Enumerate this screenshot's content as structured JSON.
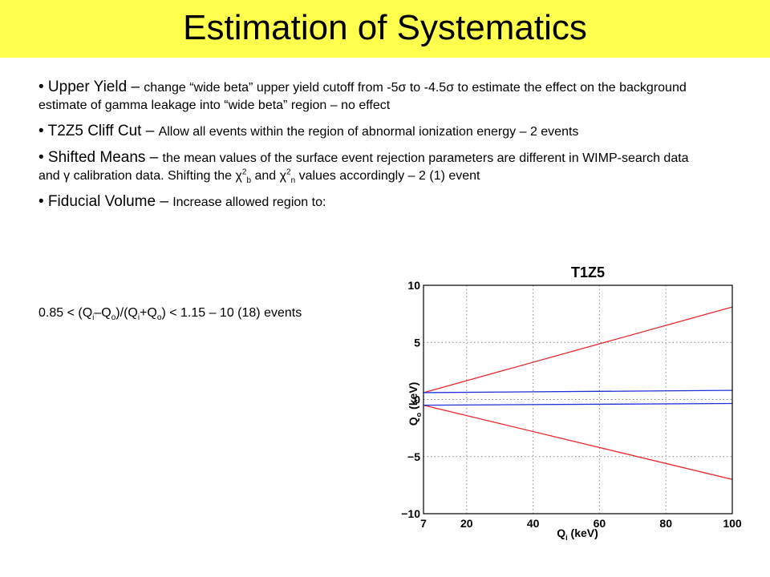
{
  "slide": {
    "title": "Estimation of Systematics",
    "bullets": [
      {
        "head": "• Upper Yield – ",
        "parts": [
          "change “wide beta” upper yield cutoff from -5",
          "σ",
          " to -4.5",
          "σ",
          " to estimate the effect on the background estimate of gamma leakage into “wide beta” region – no effect"
        ]
      },
      {
        "head": "• T2Z5 Cliff Cut – ",
        "parts": [
          "Allow all events within the region of abnormal ionization energy – 2 events"
        ]
      },
      {
        "head": "• Shifted Means – ",
        "parts": [
          "the mean values of the surface event rejection parameters are different in WIMP-search data and ",
          "γ",
          " calibration data.  Shifting the ",
          "χ",
          "2",
          "b",
          " and ",
          "χ",
          "2",
          "n",
          " values accordingly – 2 (1) event"
        ]
      },
      {
        "head": "• Fiducial Volume – ",
        "parts": [
          "Increase allowed region to:"
        ]
      }
    ],
    "formula": [
      "0.85 < (Q",
      "i",
      "–Q",
      "o",
      ")/(Q",
      "i",
      "+Q",
      "o",
      ")  < 1.15 – 10 (18) events"
    ]
  },
  "chart_data": {
    "type": "line",
    "title": "T1Z5",
    "xlabel": "Q",
    "xlabel_sub": "i",
    "xlabel_unit": " (keV)",
    "ylabel": "Q",
    "ylabel_sub": "o",
    "ylabel_unit": " (keV)",
    "xlim": [
      7,
      100
    ],
    "ylim": [
      -10,
      10
    ],
    "xticks": [
      7,
      20,
      40,
      60,
      80,
      100
    ],
    "yticks": [
      -10,
      -5,
      0,
      5,
      10
    ],
    "grid": true,
    "colors": {
      "red": "#e8262b",
      "blue": "#1f2fd6"
    },
    "series": [
      {
        "color": "red",
        "x": [
          7,
          100
        ],
        "y": [
          0.6,
          8.1
        ]
      },
      {
        "color": "red",
        "x": [
          7,
          100
        ],
        "y": [
          -0.5,
          -7.0
        ]
      },
      {
        "color": "blue",
        "x": [
          7,
          100
        ],
        "y": [
          0.6,
          0.8
        ]
      },
      {
        "color": "blue",
        "x": [
          7,
          100
        ],
        "y": [
          -0.5,
          -0.35
        ]
      }
    ]
  }
}
